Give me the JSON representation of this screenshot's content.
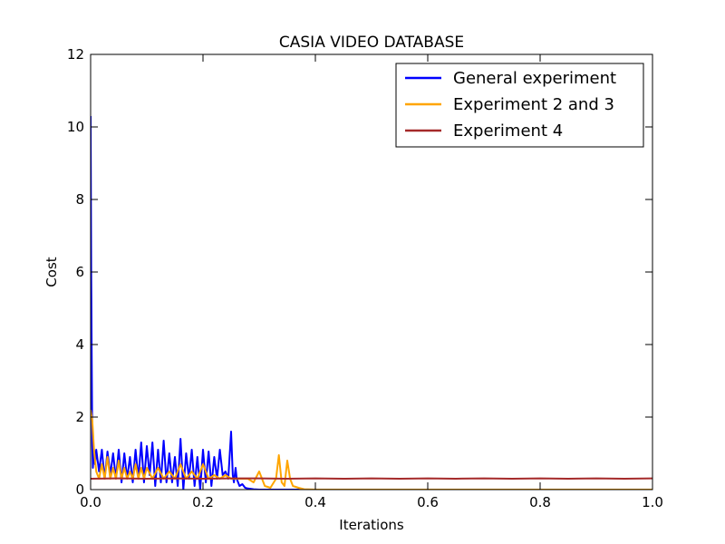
{
  "chart_data": {
    "type": "line",
    "title": "CASIA VIDEO DATABASE",
    "xlabel": "Iterations",
    "ylabel": "Cost",
    "xlim": [
      0,
      1.0
    ],
    "ylim": [
      0,
      12
    ],
    "xticks": [
      0,
      0.2,
      0.4,
      0.6,
      0.8,
      1.0
    ],
    "xtick_labels": [
      "0.0",
      "0.2",
      "0.4",
      "0.6",
      "0.8",
      "1.0"
    ],
    "yticks": [
      0,
      2,
      4,
      6,
      8,
      10,
      12
    ],
    "ytick_labels": [
      "0",
      "2",
      "4",
      "6",
      "8",
      "10",
      "12"
    ],
    "grid": false,
    "legend_position": "top-right",
    "series": [
      {
        "name": "General experiment",
        "color": "#0000ff",
        "x": [
          0.0,
          0.001,
          0.002,
          0.003,
          0.004,
          0.006,
          0.008,
          0.01,
          0.015,
          0.02,
          0.025,
          0.03,
          0.035,
          0.04,
          0.045,
          0.05,
          0.055,
          0.06,
          0.065,
          0.07,
          0.075,
          0.08,
          0.085,
          0.09,
          0.095,
          0.1,
          0.105,
          0.11,
          0.115,
          0.12,
          0.125,
          0.13,
          0.135,
          0.14,
          0.145,
          0.15,
          0.155,
          0.16,
          0.165,
          0.17,
          0.175,
          0.18,
          0.185,
          0.19,
          0.195,
          0.2,
          0.205,
          0.21,
          0.215,
          0.22,
          0.225,
          0.23,
          0.235,
          0.24,
          0.245,
          0.25,
          0.253,
          0.255,
          0.258,
          0.26,
          0.265,
          0.27,
          0.275,
          0.28,
          0.29,
          0.3,
          0.35,
          0.4,
          0.5,
          0.6,
          0.7,
          0.8,
          0.9,
          1.0
        ],
        "y": [
          10.3,
          6.0,
          3.5,
          1.2,
          0.6,
          1.1,
          0.7,
          1.1,
          0.5,
          1.1,
          0.3,
          1.05,
          0.4,
          1.0,
          0.3,
          1.1,
          0.2,
          1.0,
          0.3,
          0.9,
          0.2,
          1.1,
          0.3,
          1.3,
          0.2,
          1.2,
          0.4,
          1.3,
          0.1,
          1.1,
          0.2,
          1.35,
          0.2,
          1.0,
          0.2,
          0.9,
          0.1,
          1.4,
          0.0,
          1.0,
          0.3,
          1.1,
          0.1,
          0.9,
          0.0,
          1.1,
          0.2,
          1.05,
          0.1,
          0.9,
          0.3,
          1.1,
          0.4,
          0.5,
          0.3,
          1.6,
          0.4,
          0.2,
          0.6,
          0.3,
          0.1,
          0.15,
          0.05,
          0.03,
          0.01,
          0.0,
          0.0,
          0.0,
          0.0,
          0.0,
          0.0,
          0.0,
          0.0,
          0.0
        ]
      },
      {
        "name": "Experiment 2 and 3",
        "color": "#ffa500",
        "x": [
          0.0,
          0.003,
          0.006,
          0.01,
          0.015,
          0.02,
          0.025,
          0.03,
          0.035,
          0.04,
          0.045,
          0.05,
          0.055,
          0.06,
          0.065,
          0.07,
          0.075,
          0.08,
          0.085,
          0.09,
          0.095,
          0.1,
          0.11,
          0.12,
          0.13,
          0.14,
          0.15,
          0.16,
          0.17,
          0.18,
          0.19,
          0.2,
          0.21,
          0.22,
          0.23,
          0.24,
          0.25,
          0.26,
          0.27,
          0.28,
          0.29,
          0.3,
          0.31,
          0.32,
          0.33,
          0.335,
          0.34,
          0.345,
          0.35,
          0.355,
          0.36,
          0.37,
          0.38,
          0.4,
          0.5,
          0.6,
          0.7,
          0.8,
          0.9,
          1.0
        ],
        "y": [
          2.2,
          1.9,
          1.1,
          0.5,
          0.3,
          0.7,
          0.3,
          0.9,
          0.3,
          0.6,
          0.3,
          0.8,
          0.3,
          0.6,
          0.3,
          0.5,
          0.3,
          0.7,
          0.3,
          0.6,
          0.3,
          0.6,
          0.3,
          0.6,
          0.3,
          0.5,
          0.3,
          0.7,
          0.3,
          0.5,
          0.3,
          0.7,
          0.3,
          0.4,
          0.3,
          0.4,
          0.3,
          0.3,
          0.3,
          0.3,
          0.2,
          0.5,
          0.1,
          0.05,
          0.3,
          0.95,
          0.2,
          0.1,
          0.8,
          0.3,
          0.1,
          0.05,
          0.01,
          0.0,
          0.0,
          0.0,
          0.0,
          0.0,
          0.0,
          0.0
        ]
      },
      {
        "name": "Experiment 4",
        "color": "#a52a2a",
        "x": [
          0.0,
          0.05,
          0.1,
          0.15,
          0.2,
          0.25,
          0.3,
          0.35,
          0.4,
          0.45,
          0.5,
          0.55,
          0.6,
          0.65,
          0.7,
          0.75,
          0.8,
          0.85,
          0.9,
          0.95,
          1.0
        ],
        "y": [
          0.3,
          0.31,
          0.3,
          0.31,
          0.3,
          0.31,
          0.31,
          0.3,
          0.31,
          0.3,
          0.31,
          0.3,
          0.31,
          0.3,
          0.31,
          0.3,
          0.31,
          0.3,
          0.31,
          0.3,
          0.31
        ]
      }
    ]
  }
}
